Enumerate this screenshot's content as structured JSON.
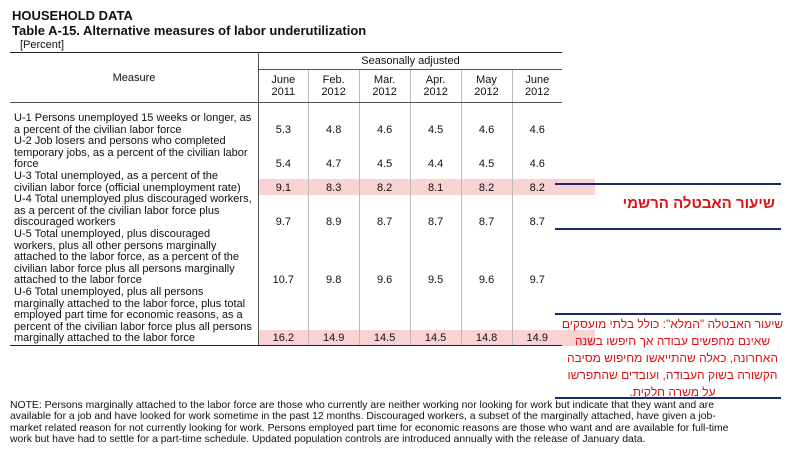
{
  "header": {
    "section": "HOUSEHOLD DATA",
    "title": "Table A-15. Alternative measures of labor underutilization",
    "unit": "[Percent]"
  },
  "table": {
    "measure_header": "Measure",
    "group_header": "Seasonally adjusted",
    "columns": [
      {
        "month": "June",
        "year": "2011"
      },
      {
        "month": "Feb.",
        "year": "2012"
      },
      {
        "month": "Mar.",
        "year": "2012"
      },
      {
        "month": "Apr.",
        "year": "2012"
      },
      {
        "month": "May",
        "year": "2012"
      },
      {
        "month": "June",
        "year": "2012"
      }
    ],
    "rows": [
      {
        "label": "U-1 Persons unemployed 15 weeks or longer, as a percent of the civilian labor force",
        "values": [
          5.3,
          4.8,
          4.6,
          4.5,
          4.6,
          4.6
        ]
      },
      {
        "label": "U-2 Job losers and persons who completed temporary jobs, as a percent of the civilian labor force",
        "values": [
          5.4,
          4.7,
          4.5,
          4.4,
          4.5,
          4.6
        ]
      },
      {
        "label": "U-3 Total unemployed, as a percent of the civilian labor force (official unemployment rate)",
        "values": [
          9.1,
          8.3,
          8.2,
          8.1,
          8.2,
          8.2
        ]
      },
      {
        "label": "U-4 Total unemployed plus discouraged workers, as a percent of the civilian labor force plus discouraged workers",
        "values": [
          9.7,
          8.9,
          8.7,
          8.7,
          8.7,
          8.7
        ]
      },
      {
        "label": "U-5 Total unemployed, plus discouraged workers, plus all other persons marginally attached to the labor force, as a percent of the civilian labor force plus all persons marginally attached to the labor force",
        "values": [
          10.7,
          9.8,
          9.6,
          9.5,
          9.6,
          9.7
        ]
      },
      {
        "label": "U-6 Total unemployed, plus all persons marginally attached to the labor force, plus total employed part time for economic reasons, as a percent of the civilian labor force plus all persons marginally attached to the labor force",
        "values": [
          16.2,
          14.9,
          14.5,
          14.5,
          14.8,
          14.9
        ]
      }
    ]
  },
  "note": "NOTE: Persons marginally attached to the labor force are those who currently are neither working nor looking for work but indicate that they want and are available for a job and have looked for work sometime in the past 12 months. Discouraged workers, a subset of the marginally attached, have given a job-market related reason for not currently looking for work. Persons employed part time for economic reasons are those who want and are available for full-time work but have had to settle for a part-time schedule. Updated population controls are introduced annually with the release of January data.",
  "annotations": {
    "official_rate": "שיעור האבטלה הרשמי",
    "full_rate": "שיעור האבטלה \"המלא\": כולל בלתי מועסקים שאינם מחפשים עבודה אך חיפשו בשנה האחרונה, כאלה שהתייאשו מחיפוש מסיבה הקשורה בשוק העבודה, ועובדים שהתפרשו על משרה חלקית."
  }
}
